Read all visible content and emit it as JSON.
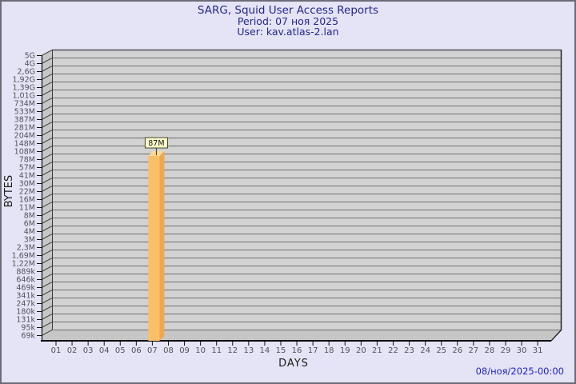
{
  "window": {
    "background": "#e4e4f6",
    "border_color": "#6d6d79"
  },
  "header": {
    "title": "SARG, Squid User Access Reports",
    "period": "Period: 07 ноя 2025",
    "user": "User: kav.atlas-2.lan",
    "text_color": "#26268f"
  },
  "footer": {
    "timestamp": "08/ноя/2025-00:00",
    "text_color": "#2222cc"
  },
  "chart_data": {
    "type": "bar",
    "style": "3d-vertical-bars",
    "title": "SARG, Squid User Access Reports",
    "xlabel": "DAYS",
    "ylabel": "BYTES",
    "y_scale": "log",
    "y_range_bytes": [
      69000,
      5000000000
    ],
    "grid": "horizontal",
    "legend_position": "none",
    "x_categories": [
      "01",
      "02",
      "03",
      "04",
      "05",
      "06",
      "07",
      "08",
      "09",
      "10",
      "11",
      "12",
      "13",
      "14",
      "15",
      "16",
      "17",
      "18",
      "19",
      "20",
      "21",
      "22",
      "23",
      "24",
      "25",
      "26",
      "27",
      "28",
      "29",
      "30",
      "31"
    ],
    "y_tick_labels": [
      "5G",
      "4G",
      "2,6G",
      "1,92G",
      "1,39G",
      "1,01G",
      "734M",
      "533M",
      "387M",
      "281M",
      "204M",
      "148M",
      "108M",
      "78M",
      "57M",
      "41M",
      "30M",
      "22M",
      "16M",
      "11M",
      "8M",
      "6M",
      "4M",
      "3M",
      "2,3M",
      "1,69M",
      "1,22M",
      "889k",
      "646k",
      "469k",
      "341k",
      "247k",
      "180k",
      "131k",
      "95k",
      "69k"
    ],
    "bars": [
      {
        "x": "07",
        "label": "87M",
        "bytes": 87000000
      }
    ],
    "colors": {
      "plot_band": "#d2d2d2",
      "grid_line": "#6f6f6f",
      "wall": "#c6c6c6",
      "wall_line": "#4a4a4a",
      "axis": "#111111",
      "tick_label": "#53535b",
      "axis_title": "#1b1b1b",
      "bar_front": "#fbbf66",
      "bar_top": "#fdd994",
      "bar_side": "#eda84e",
      "value_box_bg": "#ffffc8",
      "value_box_border": "#444433",
      "value_text": "#111111"
    }
  }
}
